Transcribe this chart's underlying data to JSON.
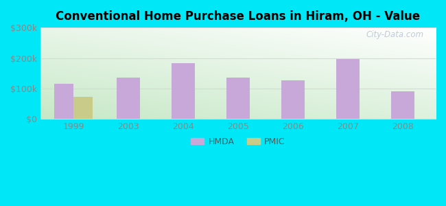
{
  "title": "Conventional Home Purchase Loans in Hiram, OH - Value",
  "years": [
    1999,
    2003,
    2004,
    2005,
    2006,
    2007,
    2008
  ],
  "hmda_values": [
    115000,
    137000,
    183000,
    137000,
    127000,
    197000,
    90000
  ],
  "pmic_values": [
    72000,
    0,
    0,
    0,
    0,
    0,
    0
  ],
  "hmda_color": "#c8a8d8",
  "pmic_color": "#c8cc88",
  "ylim": [
    0,
    300000
  ],
  "yticks": [
    0,
    100000,
    200000,
    300000
  ],
  "ytick_labels": [
    "$0",
    "$100k",
    "$200k",
    "$300k"
  ],
  "outer_bg": "#00e8f8",
  "bar_width": 0.35,
  "legend_labels": [
    "HMDA",
    "PMIC"
  ],
  "watermark": "City-Data.com",
  "grid_color": "#d8d8d8",
  "bg_colors": [
    "#ffffff",
    "#d8edd8"
  ],
  "tick_color": "#888888",
  "title_fontsize": 12
}
